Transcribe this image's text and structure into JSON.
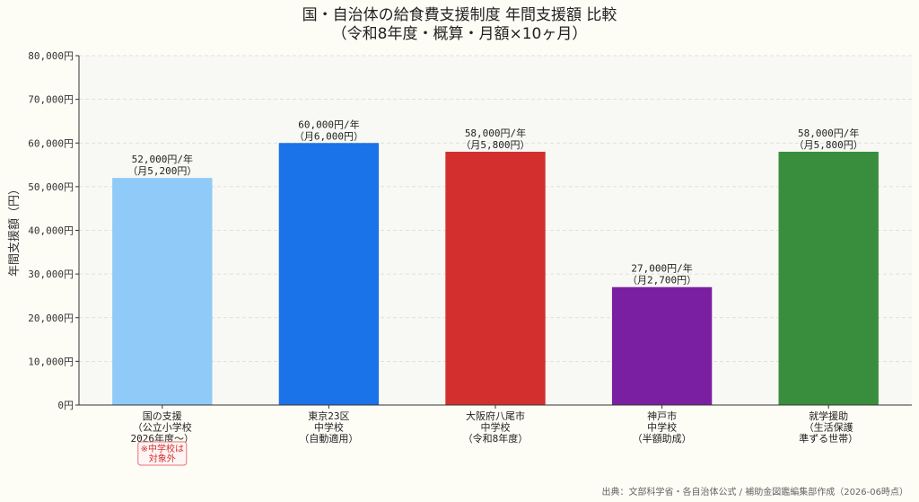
{
  "chart_data": {
    "type": "bar",
    "title": "国・自治体の給食費支援制度 年間支援額 比較",
    "subtitle": "（令和8年度・概算・月額×10ヶ月）",
    "ylabel": "年間支援額（円）",
    "xlabel": "",
    "ylim": [
      0,
      80000
    ],
    "yticks": [
      0,
      10000,
      20000,
      30000,
      40000,
      50000,
      60000,
      70000,
      80000
    ],
    "ytick_labels": [
      "0円",
      "10,000円",
      "20,000円",
      "30,000円",
      "40,000円",
      "50,000円",
      "60,000円",
      "70,000円",
      "80,000円"
    ],
    "grid": true,
    "categories": [
      [
        "国の支援",
        "（公立小学校",
        "2026年度～）"
      ],
      [
        "東京23区",
        "中学校",
        "（自動適用）"
      ],
      [
        "大阪府八尾市",
        "中学校",
        "（令和8年度）"
      ],
      [
        "神戸市",
        "中学校",
        "（半額助成）"
      ],
      [
        "就学援助",
        "（生活保護",
        "準ずる世帯）"
      ]
    ],
    "values": [
      52000,
      60000,
      58000,
      27000,
      58000
    ],
    "bar_labels": [
      [
        "52,000円/年",
        "（月5,200円）"
      ],
      [
        "60,000円/年",
        "（月6,000円）"
      ],
      [
        "58,000円/年",
        "（月5,800円）"
      ],
      [
        "27,000円/年",
        "（月2,700円）"
      ],
      [
        "58,000円/年",
        "（月5,800円）"
      ]
    ],
    "colors": [
      "#90caf9",
      "#1a73e8",
      "#d32f2f",
      "#7b1fa2",
      "#388e3c"
    ],
    "annotation": {
      "category_index": 0,
      "lines": [
        "※中学校は",
        "対象外"
      ],
      "color": "#d32f2f"
    }
  },
  "source": "出典：文部科学省・各自治体公式 / 補助金図鑑編集部作成（2026-06時点）"
}
